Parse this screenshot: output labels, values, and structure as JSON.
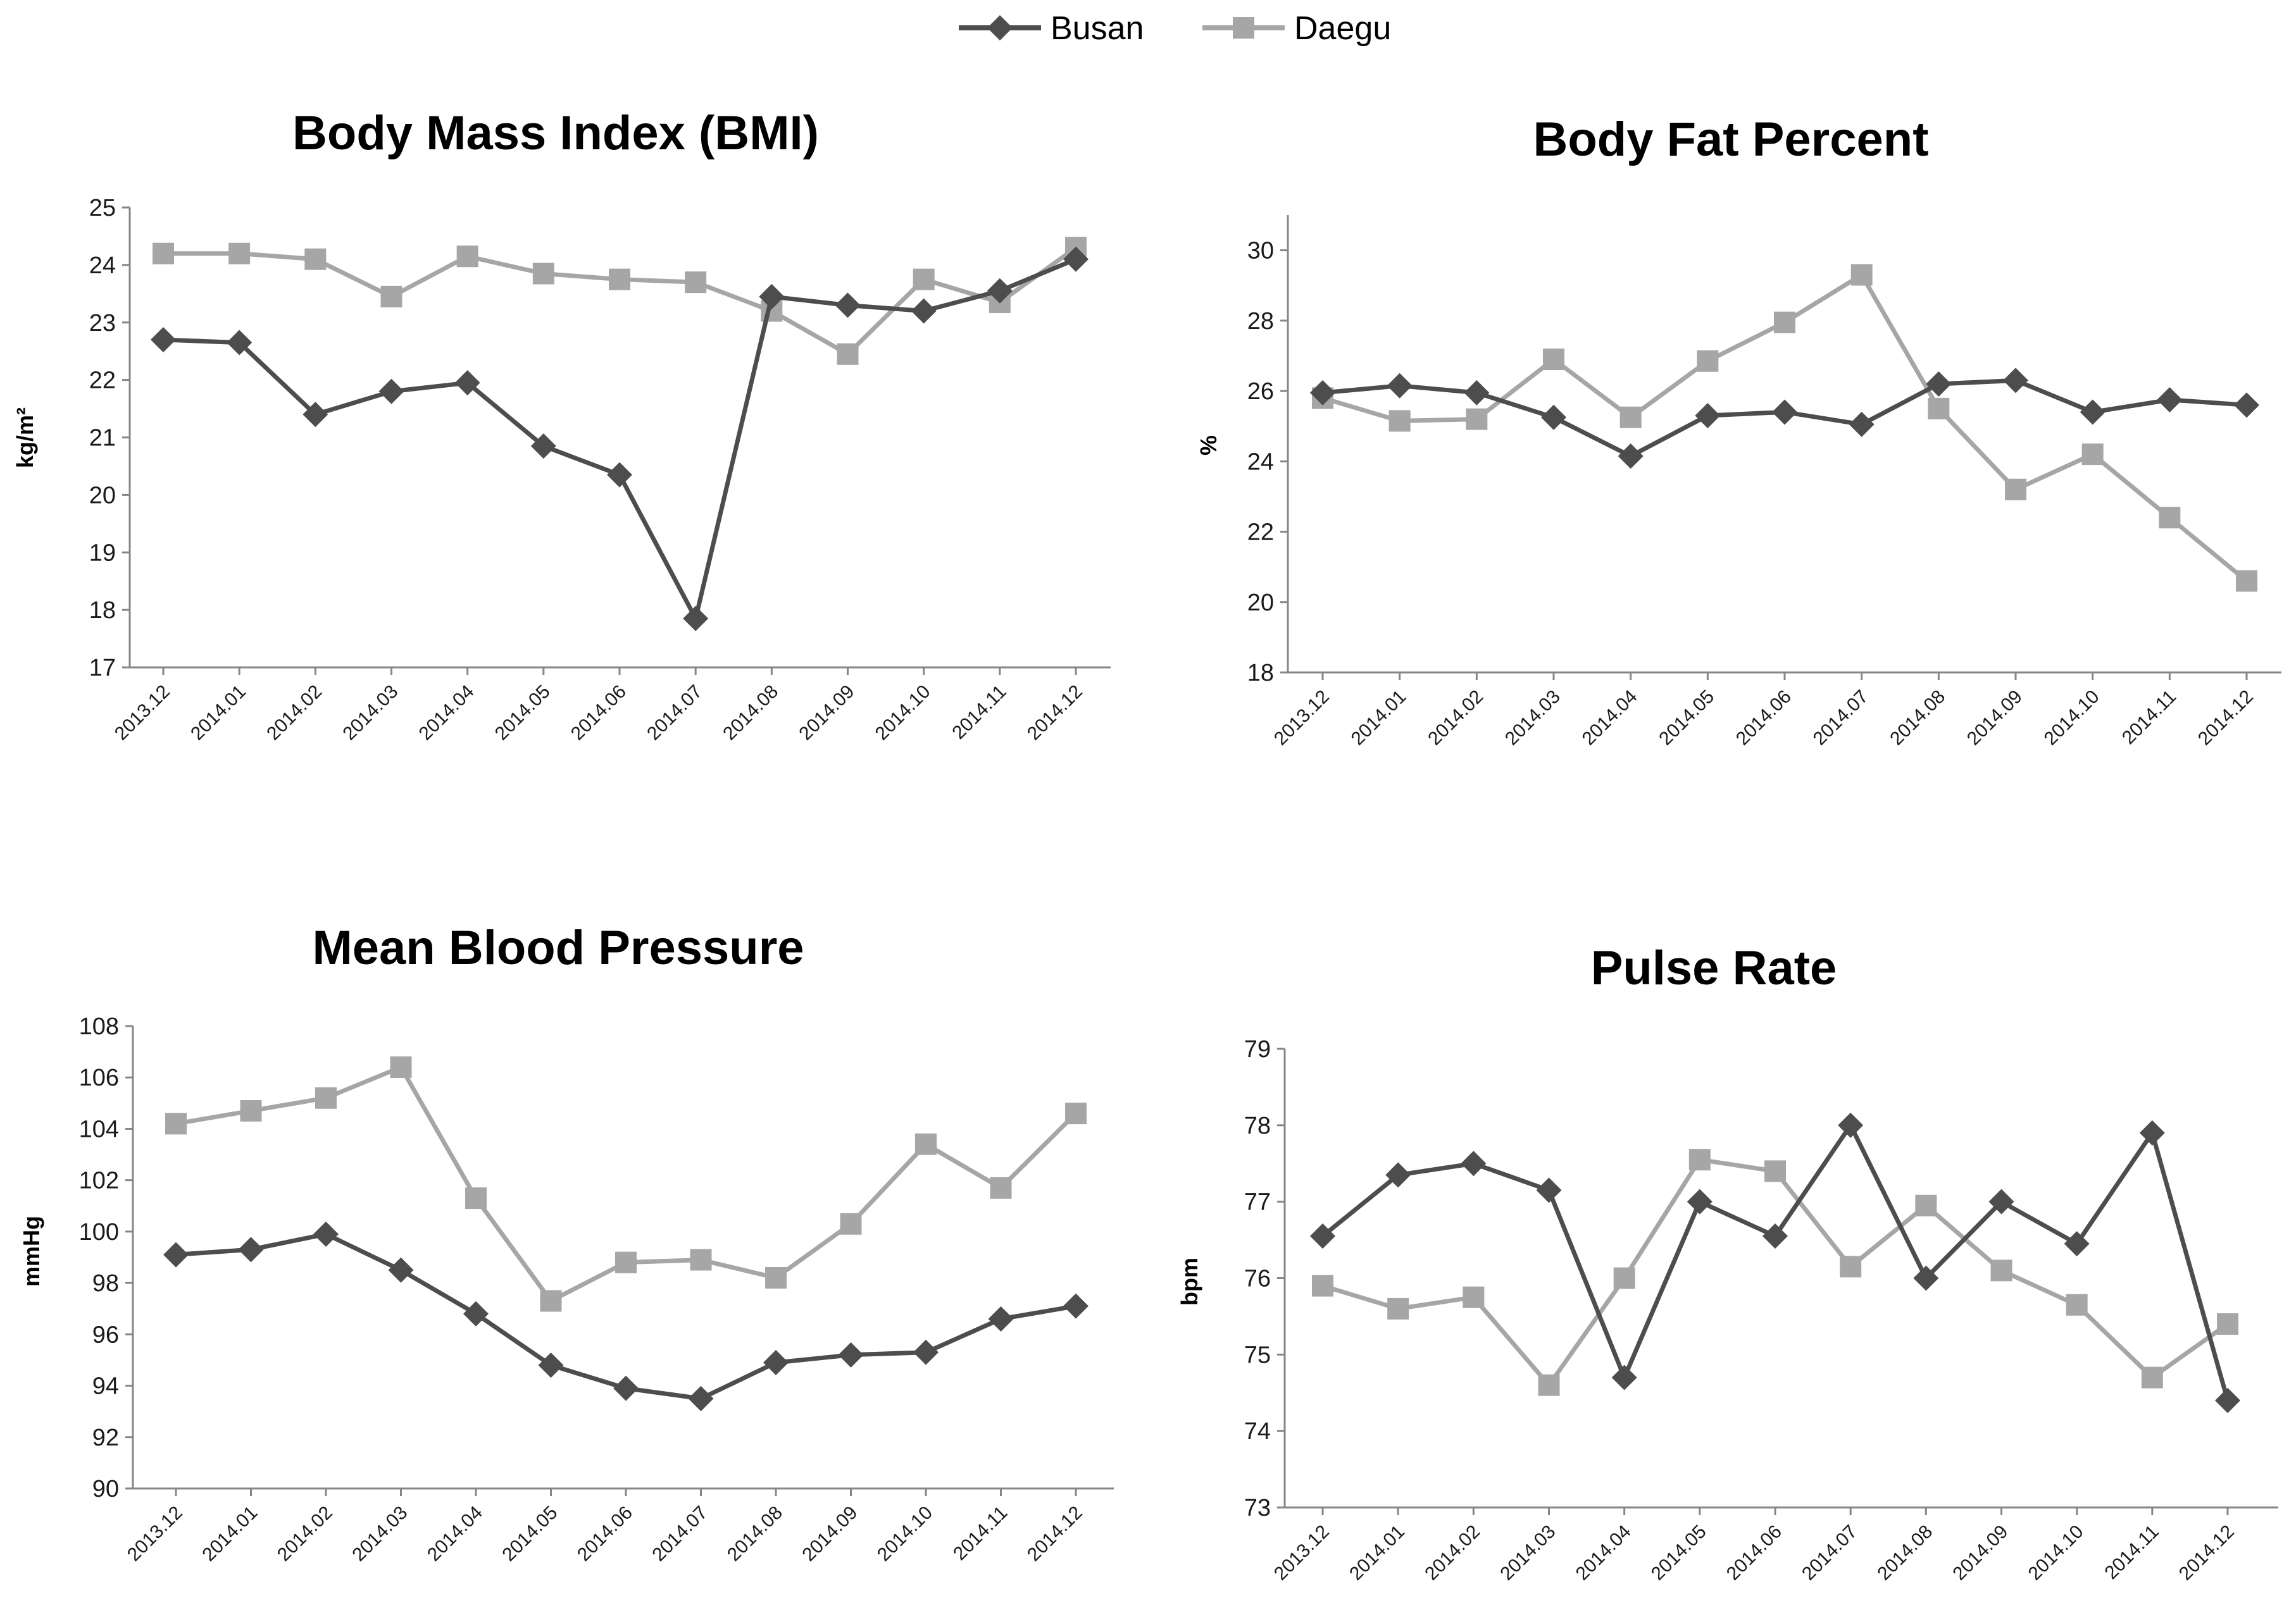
{
  "legend": {
    "items": [
      {
        "name": "Busan",
        "color": "#4d4d4d",
        "marker": "diamond"
      },
      {
        "name": "Daegu",
        "color": "#a6a6a6",
        "marker": "square"
      }
    ]
  },
  "chart_data": [
    {
      "type": "line",
      "title": "Body Mass Index (BMI)",
      "xlabel": "",
      "ylabel": "kg/m²",
      "ylim": [
        17,
        25
      ],
      "yticks": [
        "17",
        "18",
        "19",
        "20",
        "21",
        "22",
        "23",
        "24",
        "25"
      ],
      "categories": [
        "2013.12",
        "2014.01",
        "2014.02",
        "2014.03",
        "2014.04",
        "2014.05",
        "2014.06",
        "2014.07",
        "2014.08",
        "2014.09",
        "2014.10",
        "2014.11",
        "2014.12"
      ],
      "series": [
        {
          "name": "Busan",
          "values": [
            22.7,
            22.65,
            21.4,
            21.8,
            21.95,
            20.85,
            20.35,
            17.85,
            23.45,
            23.3,
            23.2,
            23.55,
            24.1
          ]
        },
        {
          "name": "Daegu",
          "values": [
            24.2,
            24.2,
            24.1,
            23.45,
            24.15,
            23.85,
            23.75,
            23.7,
            23.2,
            22.45,
            23.75,
            23.35,
            24.3
          ]
        }
      ]
    },
    {
      "type": "line",
      "title": "Body Fat Percent",
      "xlabel": "",
      "ylabel": "%",
      "ylim": [
        18,
        31
      ],
      "yticks": [
        "18",
        "20",
        "22",
        "24",
        "26",
        "28",
        "30"
      ],
      "categories": [
        "2013.12",
        "2014.01",
        "2014.02",
        "2014.03",
        "2014.04",
        "2014.05",
        "2014.06",
        "2014.07",
        "2014.08",
        "2014.09",
        "2014.10",
        "2014.11",
        "2014.12"
      ],
      "series": [
        {
          "name": "Busan",
          "values": [
            25.95,
            26.15,
            25.95,
            25.25,
            24.15,
            25.3,
            25.4,
            25.05,
            26.2,
            26.3,
            25.4,
            25.75,
            25.6
          ]
        },
        {
          "name": "Daegu",
          "values": [
            25.8,
            25.15,
            25.2,
            26.9,
            25.25,
            26.85,
            27.95,
            29.3,
            25.5,
            23.2,
            24.2,
            22.4,
            20.6
          ]
        }
      ]
    },
    {
      "type": "line",
      "title": "Mean Blood Pressure",
      "xlabel": "",
      "ylabel": "mmHg",
      "ylim": [
        90,
        108
      ],
      "yticks": [
        "90",
        "92",
        "94",
        "96",
        "98",
        "100",
        "102",
        "104",
        "106",
        "108"
      ],
      "categories": [
        "2013.12",
        "2014.01",
        "2014.02",
        "2014.03",
        "2014.04",
        "2014.05",
        "2014.06",
        "2014.07",
        "2014.08",
        "2014.09",
        "2014.10",
        "2014.11",
        "2014.12"
      ],
      "series": [
        {
          "name": "Busan",
          "values": [
            99.1,
            99.3,
            99.9,
            98.5,
            96.8,
            94.8,
            93.9,
            93.5,
            94.9,
            95.2,
            95.3,
            96.6,
            97.1
          ]
        },
        {
          "name": "Daegu",
          "values": [
            104.2,
            104.7,
            105.2,
            106.4,
            101.3,
            97.3,
            98.8,
            98.9,
            98.2,
            100.3,
            103.4,
            101.7,
            104.6
          ]
        }
      ]
    },
    {
      "type": "line",
      "title": "Pulse Rate",
      "xlabel": "",
      "ylabel": "bpm",
      "ylim": [
        73,
        79
      ],
      "yticks": [
        "73",
        "74",
        "75",
        "76",
        "77",
        "78",
        "79"
      ],
      "categories": [
        "2013.12",
        "2014.01",
        "2014.02",
        "2014.03",
        "2014.04",
        "2014.05",
        "2014.06",
        "2014.07",
        "2014.08",
        "2014.09",
        "2014.10",
        "2014.11",
        "2014.12"
      ],
      "series": [
        {
          "name": "Busan",
          "values": [
            76.55,
            77.35,
            77.5,
            77.15,
            74.7,
            77.0,
            76.55,
            78.0,
            76.0,
            77.0,
            76.45,
            77.9,
            74.4
          ]
        },
        {
          "name": "Daegu",
          "values": [
            75.9,
            75.6,
            75.75,
            74.6,
            76.0,
            77.55,
            77.4,
            76.15,
            76.95,
            76.1,
            75.65,
            74.7,
            75.4
          ]
        }
      ]
    }
  ]
}
